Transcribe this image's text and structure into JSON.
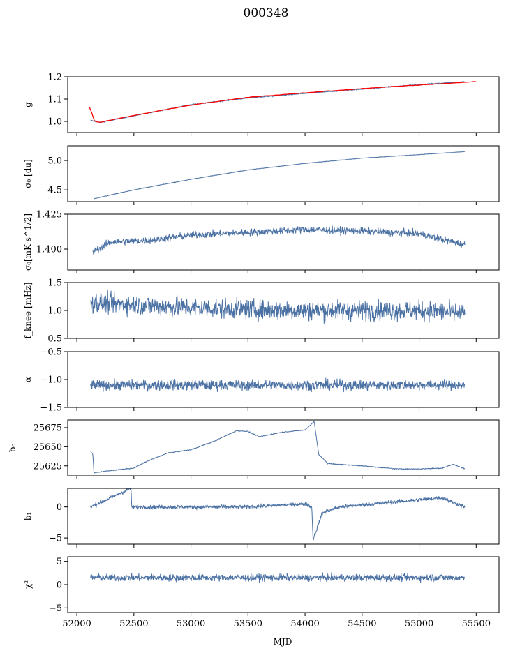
{
  "figure": {
    "title": "000348"
  },
  "chart_data": [
    {
      "type": "line",
      "title": "",
      "xlabel": "",
      "ylabel": "g",
      "ylim": [
        0.95,
        1.2
      ],
      "yticks": [
        1.0,
        1.1,
        1.2
      ],
      "ytick_labels": [
        "1.0",
        "1.1",
        "1.2"
      ],
      "series": [
        {
          "name": "g",
          "color": "#4c72a4",
          "x": [
            52120,
            52200,
            52500,
            53000,
            53500,
            54000,
            54500,
            55000,
            55400
          ],
          "values": [
            1.005,
            0.995,
            1.025,
            1.075,
            1.105,
            1.125,
            1.145,
            1.165,
            1.178
          ]
        },
        {
          "name": "g-fit",
          "color": "#ff0000",
          "x": [
            52110,
            52160,
            52200,
            52500,
            53000,
            53500,
            54000,
            54500,
            55000,
            55500
          ],
          "values": [
            1.065,
            1.0,
            0.996,
            1.027,
            1.073,
            1.108,
            1.128,
            1.147,
            1.163,
            1.178
          ]
        }
      ]
    },
    {
      "type": "line",
      "ylabel": "σ₀ [du]",
      "ylim": [
        4.3,
        5.25
      ],
      "yticks": [
        4.5,
        5.0
      ],
      "ytick_labels": [
        "4.5",
        "5.0"
      ],
      "series": [
        {
          "name": "sigma0",
          "color": "#4c72a4",
          "x": [
            52150,
            52500,
            53000,
            53500,
            54000,
            54500,
            55000,
            55400
          ],
          "values": [
            4.35,
            4.5,
            4.68,
            4.84,
            4.95,
            5.04,
            5.1,
            5.15
          ]
        }
      ]
    },
    {
      "type": "line",
      "ylabel": "σ₀[mK s^1/2]",
      "ylim": [
        1.385,
        1.425
      ],
      "yticks": [
        1.4,
        1.425
      ],
      "ytick_labels": [
        "1.400",
        "1.425"
      ],
      "series": [
        {
          "name": "sigma0-temp",
          "color": "#4c72a4",
          "x": [
            52140,
            52300,
            52600,
            53000,
            53500,
            54000,
            54500,
            55000,
            55400
          ],
          "values": [
            1.398,
            1.405,
            1.406,
            1.41,
            1.412,
            1.414,
            1.413,
            1.411,
            1.403
          ]
        }
      ]
    },
    {
      "type": "line",
      "ylabel": "f_knee [mHz]",
      "ylim": [
        0.5,
        1.5
      ],
      "yticks": [
        0.5,
        1.0,
        1.5
      ],
      "ytick_labels": [
        "0.5",
        "1.0",
        "1.5"
      ],
      "series": [
        {
          "name": "fknee",
          "color": "#4c72a4",
          "x": [
            52120,
            52500,
            53000,
            53500,
            54000,
            54500,
            55000,
            55400
          ],
          "values": [
            1.15,
            1.1,
            1.05,
            1.02,
            1.0,
            1.0,
            1.0,
            0.95
          ]
        }
      ]
    },
    {
      "type": "line",
      "ylabel": "α",
      "ylim": [
        -1.5,
        -0.5
      ],
      "yticks": [
        -1.5,
        -1.0,
        -0.5
      ],
      "ytick_labels": [
        "−1.5",
        "−1.0",
        "−0.5"
      ],
      "series": [
        {
          "name": "alpha",
          "color": "#4c72a4",
          "x": [
            52120,
            52500,
            53000,
            53500,
            54000,
            54500,
            55000,
            55400
          ],
          "values": [
            -1.1,
            -1.1,
            -1.1,
            -1.1,
            -1.1,
            -1.1,
            -1.1,
            -1.1
          ]
        }
      ]
    },
    {
      "type": "line",
      "ylabel": "b₀",
      "ylim": [
        25612,
        25685
      ],
      "yticks": [
        25625,
        25650,
        25675
      ],
      "ytick_labels": [
        "25625",
        "25650",
        "25675"
      ],
      "series": [
        {
          "name": "b0",
          "color": "#4c72a4",
          "x": [
            52120,
            52140,
            52150,
            52300,
            52500,
            52600,
            52800,
            53000,
            53200,
            53400,
            53500,
            53600,
            53800,
            54000,
            54080,
            54120,
            54200,
            54500,
            54800,
            55000,
            55200,
            55300,
            55400
          ],
          "values": [
            25643,
            25641,
            25616,
            25619,
            25622,
            25630,
            25642,
            25646,
            25657,
            25671,
            25670,
            25663,
            25669,
            25672,
            25683,
            25640,
            25628,
            25625,
            25621,
            25621,
            25622,
            25627,
            25621
          ]
        }
      ]
    },
    {
      "type": "line",
      "ylabel": "b₁",
      "ylim": [
        -6,
        3
      ],
      "yticks": [
        -5,
        0
      ],
      "ytick_labels": [
        "−5",
        "0"
      ],
      "series": [
        {
          "name": "b1",
          "color": "#4c72a4",
          "x": [
            52120,
            52475,
            52480,
            53500,
            54000,
            54060,
            54070,
            54150,
            54300,
            55200,
            55400
          ],
          "values": [
            0.0,
            3.0,
            0.0,
            0.0,
            0.5,
            0.0,
            -5.3,
            -1.0,
            0.0,
            1.5,
            0.0
          ]
        }
      ]
    },
    {
      "type": "line",
      "ylabel": "χ²",
      "xlabel": "MJD",
      "ylim": [
        -6,
        6
      ],
      "yticks": [
        -5,
        0,
        5
      ],
      "ytick_labels": [
        "−5",
        "0",
        "5"
      ],
      "xlim": [
        51920,
        55700
      ],
      "xticks": [
        52000,
        52500,
        53000,
        53500,
        54000,
        54500,
        55000,
        55500
      ],
      "xtick_labels": [
        "52000",
        "52500",
        "53000",
        "53500",
        "54000",
        "54500",
        "55000",
        "55500"
      ],
      "series": [
        {
          "name": "chi2",
          "color": "#4c72a4",
          "x": [
            52120,
            52500,
            53000,
            53500,
            54000,
            54500,
            55000,
            55400
          ],
          "values": [
            1.5,
            1.5,
            1.5,
            1.5,
            1.5,
            1.5,
            1.5,
            1.5
          ]
        }
      ]
    }
  ]
}
